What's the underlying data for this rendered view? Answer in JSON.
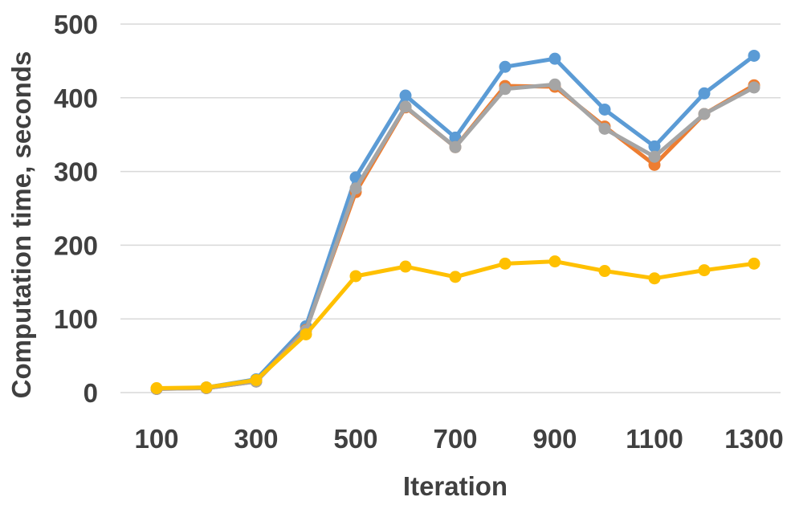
{
  "chart_data": {
    "type": "line",
    "xlabel": "Iteration",
    "ylabel": "Computation time, seconds",
    "x": [
      100,
      200,
      300,
      400,
      500,
      600,
      700,
      800,
      900,
      1000,
      1100,
      1200,
      1300
    ],
    "x_tick_labels": [
      "100",
      "300",
      "500",
      "700",
      "900",
      "1100",
      "1300"
    ],
    "x_tick_values": [
      100,
      300,
      500,
      700,
      900,
      1100,
      1300
    ],
    "y_ticks": [
      0,
      100,
      200,
      300,
      400,
      500
    ],
    "ylim": [
      0,
      500
    ],
    "grid": true,
    "series": [
      {
        "color": "#5b9bd5",
        "values": [
          5,
          7,
          18,
          90,
          292,
          403,
          346,
          442,
          453,
          384,
          334,
          406,
          457
        ]
      },
      {
        "color": "#ed7d31",
        "values": [
          5,
          6,
          15,
          85,
          272,
          387,
          333,
          416,
          415,
          361,
          309,
          378,
          417
        ]
      },
      {
        "color": "#a5a5a5",
        "values": [
          5,
          6,
          15,
          84,
          277,
          388,
          333,
          412,
          418,
          358,
          320,
          378,
          414
        ]
      },
      {
        "color": "#ffc000",
        "values": [
          6,
          7,
          17,
          79,
          158,
          171,
          157,
          175,
          178,
          165,
          155,
          166,
          175
        ]
      }
    ]
  }
}
